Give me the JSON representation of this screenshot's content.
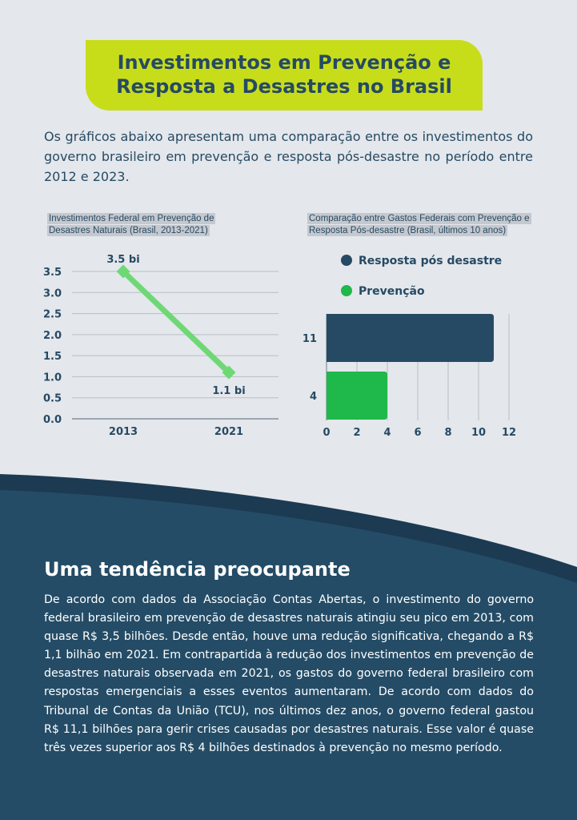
{
  "header": {
    "title": "Investimentos em Prevenção e Resposta a Desastres no Brasil"
  },
  "intro": "Os gráficos abaixo apresentam uma comparação entre os investimentos do governo brasileiro em prevenção e resposta pós-desastre no período entre 2012 e 2023.",
  "colors": {
    "accent": "#c8dd1a",
    "navy": "#264a63",
    "green": "#1fb84a",
    "line": "#6ed875",
    "band": "#244c66"
  },
  "chart_data": [
    {
      "type": "line",
      "title": "Investimentos Federal em Prevenção de Desastres Naturais (Brasil, 2013-2021)",
      "x": [
        "2013",
        "2021"
      ],
      "values": [
        3.5,
        1.1
      ],
      "data_labels": [
        "3.5 bi",
        "1.1 bi"
      ],
      "ylim": [
        0,
        3.5
      ],
      "yticks": [
        "0.0",
        "0.5",
        "1.0",
        "1.5",
        "2.0",
        "2.5",
        "3.0",
        "3.5"
      ],
      "grid": true
    },
    {
      "type": "bar",
      "orientation": "horizontal",
      "title": "Comparação entre Gastos Federais com Prevenção e Resposta Pós-desastre (Brasil, últimos 10 anos)",
      "categories": [
        "Resposta pós desastre",
        "Prevenção"
      ],
      "values": [
        11,
        4
      ],
      "category_labels": [
        "11",
        "4"
      ],
      "legend": [
        "Resposta pós desastre",
        "Prevenção"
      ],
      "legend_placement": "top",
      "xlim": [
        0,
        12
      ],
      "xticks": [
        "0",
        "2",
        "4",
        "6",
        "8",
        "10",
        "12"
      ],
      "grid": true
    }
  ],
  "section": {
    "title": "Uma tendência preocupante",
    "body": "De acordo com dados da Associação Contas Abertas, o investimento do governo federal brasileiro em prevenção de desastres naturais atingiu seu pico em 2013, com quase R$ 3,5 bilhões. Desde então, houve uma redução significativa, chegando a R$ 1,1 bilhão em 2021. Em contrapartida à redução dos investimentos em prevenção de desastres naturais observada em 2021, os gastos do governo federal brasileiro com respostas emergenciais a esses eventos aumentaram. De acordo com dados do Tribunal de Contas da União (TCU), nos últimos dez anos, o governo federal gastou R$ 11,1 bilhões para gerir crises causadas por desastres naturais. Esse valor é quase três vezes superior aos R$ 4 bilhões destinados à prevenção no mesmo período."
  }
}
